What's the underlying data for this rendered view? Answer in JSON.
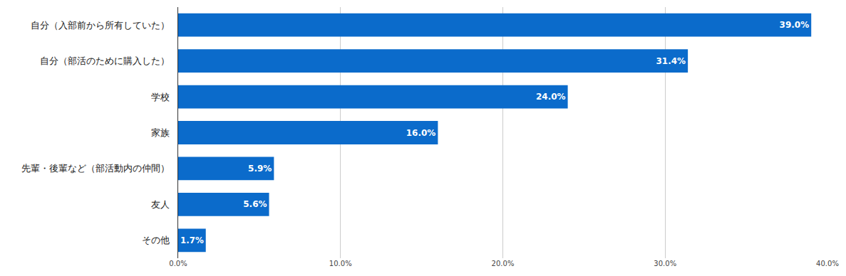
{
  "chart_data": {
    "type": "bar",
    "orientation": "horizontal",
    "categories": [
      "自分（入部前から所有していた）",
      "自分（部活のために購入した）",
      "学校",
      "家族",
      "先輩・後輩など（部活動内の仲間）",
      "友人",
      "その他"
    ],
    "values": [
      39.0,
      31.4,
      24.0,
      16.0,
      5.9,
      5.6,
      1.7
    ],
    "value_labels": [
      "39.0%",
      "31.4%",
      "24.0%",
      "16.0%",
      "5.9%",
      "5.6%",
      "1.7%"
    ],
    "color": "#0b6bcb",
    "xlim": [
      0,
      40
    ],
    "xticks": [
      {
        "value": 0,
        "label": "0.0%"
      },
      {
        "value": 10,
        "label": "10.0%"
      },
      {
        "value": 20,
        "label": "20.0%"
      },
      {
        "value": 30,
        "label": "30.0%"
      },
      {
        "value": 40,
        "label": "40.0%"
      }
    ],
    "grid": true,
    "data_labels": true
  }
}
